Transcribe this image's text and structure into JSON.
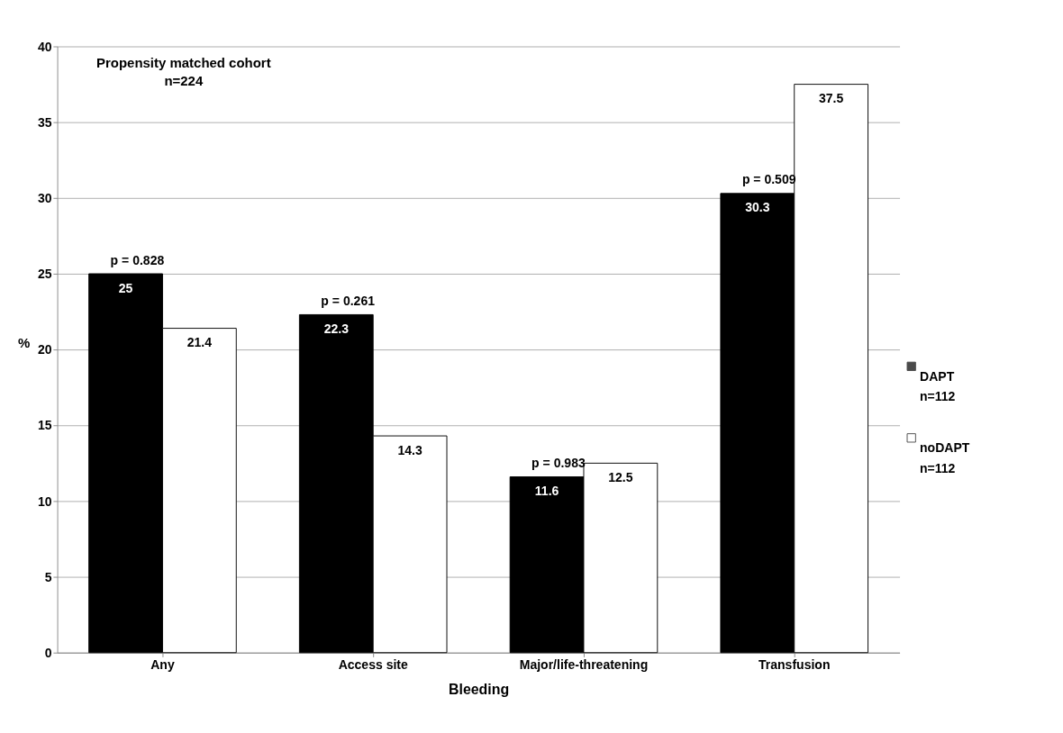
{
  "chart_data": {
    "type": "bar",
    "categories": [
      "Any",
      "Access site",
      "Major/life-threatening",
      "Transfusion"
    ],
    "series": [
      {
        "name": "DAPT\nn=112",
        "color": "#000000",
        "values": [
          25,
          22.3,
          11.6,
          30.3
        ]
      },
      {
        "name": "noDAPT\nn=112",
        "color": "#ffffff",
        "values": [
          21.4,
          14.3,
          12.5,
          37.5
        ]
      }
    ],
    "xlabel": "Bleeding",
    "ylabel": "%",
    "ylim": [
      0,
      40
    ],
    "yticks": [
      0,
      5,
      10,
      15,
      20,
      25,
      30,
      35,
      40
    ],
    "grid": "y",
    "legend": "right",
    "data_labels": true,
    "annotations": [
      "Propensity matched cohort\nn=224",
      "p = 0.828",
      "p = 0.261",
      "p = 0.983",
      "p = 0.509"
    ]
  }
}
